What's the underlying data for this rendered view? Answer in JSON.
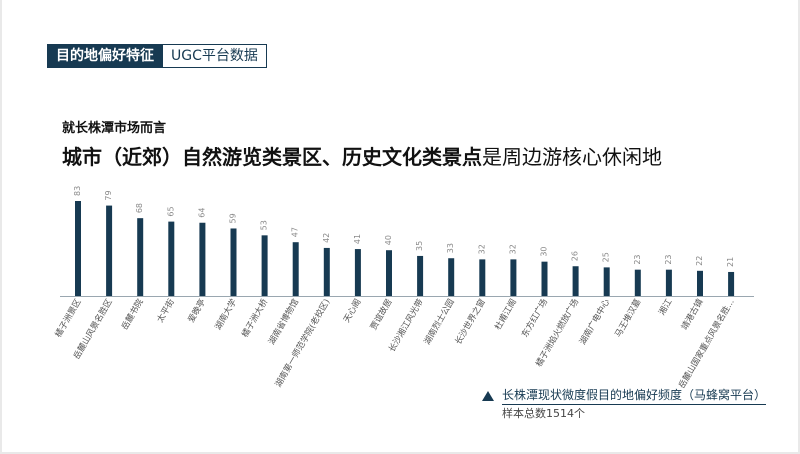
{
  "badge": {
    "primary": "目的地偏好特征",
    "secondary": "UGC平台数据"
  },
  "subtitle": "就长株潭市场而言",
  "title": {
    "bold": "城市（近郊）自然游览类景区、历史文化类景点",
    "rest": "是周边游核心休闲地"
  },
  "legend": {
    "label": "长株潭现状微度假目的地偏好频度（马蜂窝平台）",
    "sample": "样本总数1514个"
  },
  "colors": {
    "bar": "#173a52",
    "accent": "#173a52"
  },
  "chart_data": {
    "type": "bar",
    "categories": [
      "橘子洲景区",
      "岳麓山风景名胜区",
      "岳麓书院",
      "太平街",
      "爱晚亭",
      "湖南大学",
      "橘子洲大桥",
      "湖南省博物馆",
      "湖南第一师范学院(老校区)",
      "天心阁",
      "贾谊故居",
      "长沙湘江风光带",
      "湖南烈士公园",
      "长沙世界之窗",
      "杜甫江阁",
      "东方红广场",
      "橘子洲焰火燃放广场",
      "湖南广电中心",
      "马王堆汉墓",
      "湘江",
      "靖港古镇",
      "岳麓山国家重点风景名胜..."
    ],
    "values": [
      83,
      79,
      68,
      65,
      64,
      59,
      53,
      47,
      42,
      41,
      40,
      35,
      33,
      32,
      32,
      30,
      26,
      25,
      23,
      23,
      22,
      21
    ],
    "ylim": [
      0,
      90
    ]
  }
}
